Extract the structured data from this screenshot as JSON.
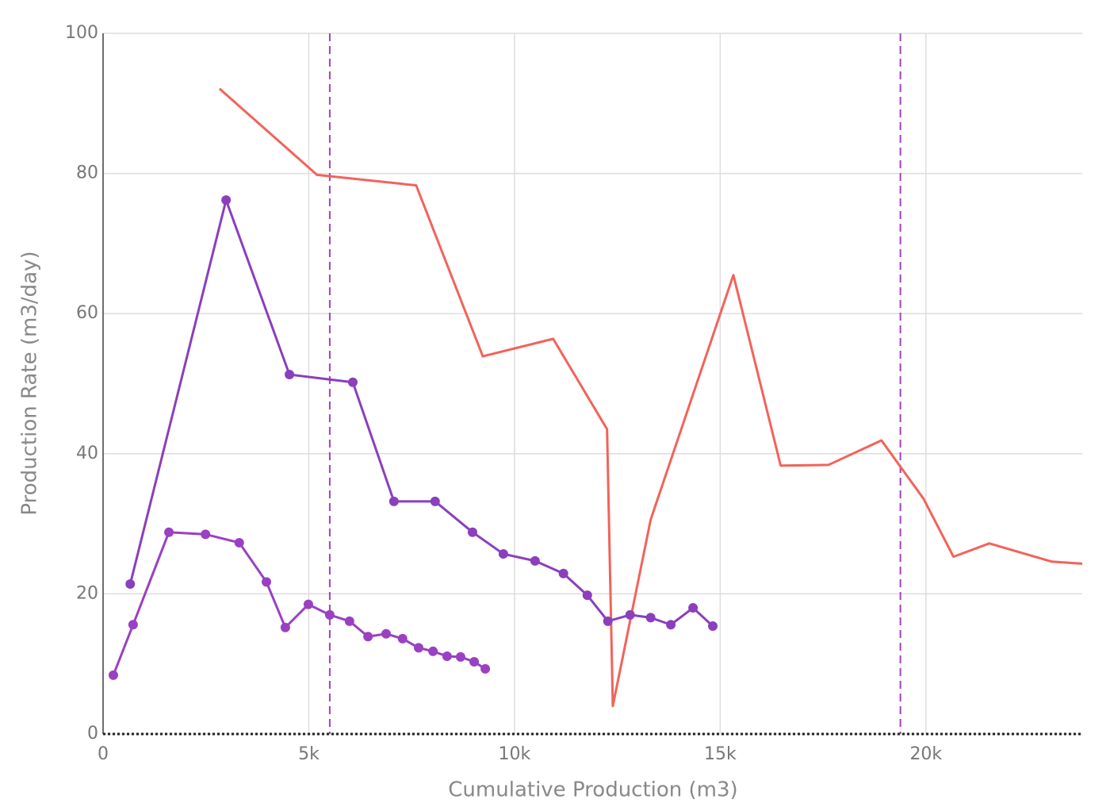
{
  "chart_data": {
    "type": "line",
    "x_label": "Cumulative Production (m3)",
    "y_label": "Production Rate (m3/day)",
    "xlim": [
      0,
      23800
    ],
    "ylim": [
      0,
      100
    ],
    "xticks": [
      0,
      {
        "value": 5000,
        "label": "5k"
      },
      {
        "value": 10000,
        "label": "10k"
      },
      {
        "value": 15000,
        "label": "15k"
      },
      {
        "value": 20000,
        "label": "20k"
      }
    ],
    "yticks": [
      0,
      20,
      40,
      60,
      80,
      100
    ],
    "grid": true,
    "zeroline": true,
    "vlines": {
      "x": [
        5510,
        19380
      ],
      "color": "#a23fc4"
    },
    "series": [
      {
        "color": "#f2635a",
        "markers": false,
        "x": [
          2830,
          5200,
          7610,
          9230,
          10940,
          12250,
          12390,
          13310,
          15320,
          16470,
          17630,
          18920,
          19940,
          20670,
          21540,
          23060,
          23800
        ],
        "values": [
          92.1,
          79.8,
          78.3,
          53.9,
          56.4,
          43.5,
          4.0,
          30.6,
          65.5,
          38.3,
          38.4,
          41.9,
          33.6,
          25.3,
          27.2,
          24.6,
          24.3
        ]
      },
      {
        "color": "#8a3fbd",
        "markers": true,
        "x": [
          660,
          2990,
          4530,
          6070,
          7070,
          8070,
          8980,
          9730,
          10500,
          11190,
          11770,
          12270,
          12810,
          13310,
          13800,
          14340,
          14820
        ],
        "values": [
          21.4,
          76.2,
          51.3,
          50.2,
          33.2,
          33.2,
          28.8,
          25.7,
          24.7,
          22.9,
          19.8,
          16.1,
          17.0,
          16.6,
          15.6,
          18.0,
          15.4
        ]
      },
      {
        "color": "#9a40c2",
        "markers": true,
        "x": [
          250,
          730,
          1600,
          2490,
          3310,
          3970,
          4430,
          4990,
          5510,
          5990,
          6440,
          6880,
          7280,
          7670,
          8020,
          8360,
          8690,
          9020,
          9290
        ],
        "values": [
          8.4,
          15.6,
          28.8,
          28.5,
          27.3,
          21.7,
          15.2,
          18.5,
          17.0,
          16.1,
          13.9,
          14.3,
          13.6,
          12.3,
          11.8,
          11.1,
          11.0,
          10.3,
          9.3
        ]
      }
    ]
  }
}
